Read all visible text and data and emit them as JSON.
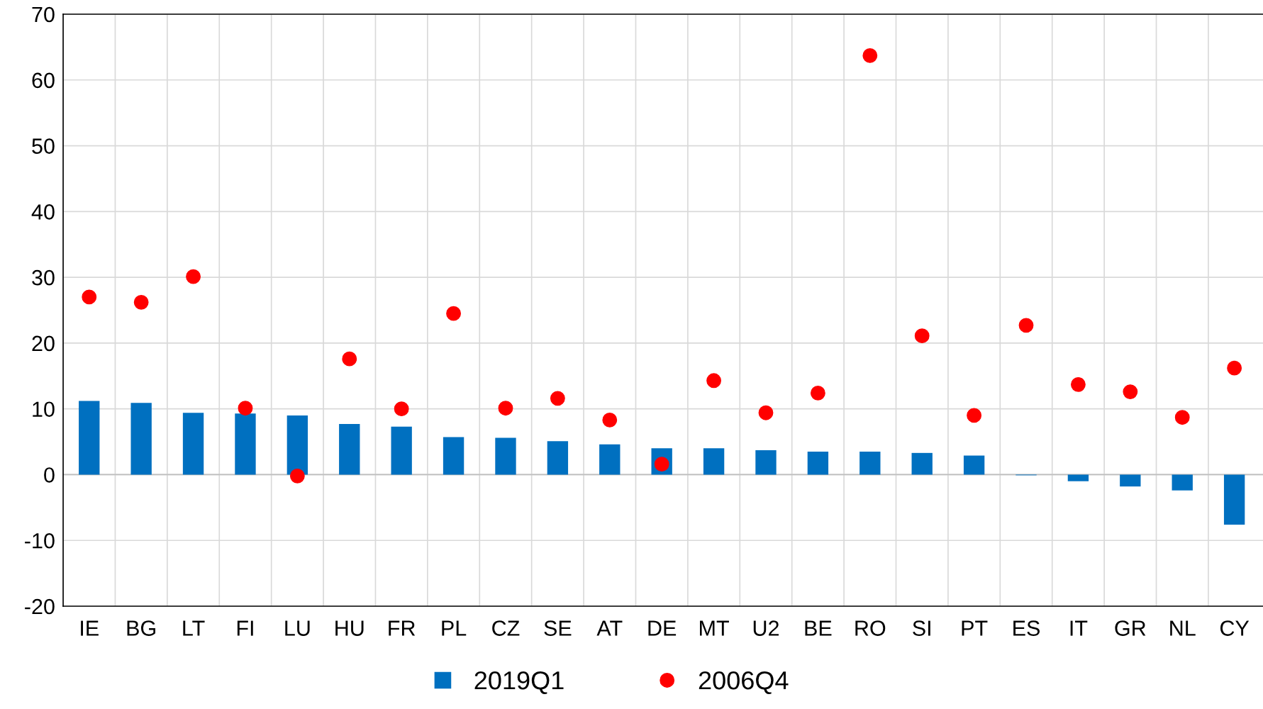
{
  "chart_data": {
    "type": "bar",
    "categories": [
      "IE",
      "BG",
      "LT",
      "FI",
      "LU",
      "HU",
      "FR",
      "PL",
      "CZ",
      "SE",
      "AT",
      "DE",
      "MT",
      "U2",
      "BE",
      "RO",
      "SI",
      "PT",
      "ES",
      "IT",
      "GR",
      "NL",
      "CY"
    ],
    "series": [
      {
        "name": "2019Q1",
        "color": "#0070c0",
        "values": [
          11.2,
          10.9,
          9.4,
          9.3,
          9.0,
          7.7,
          7.3,
          5.7,
          5.6,
          5.1,
          4.6,
          4.0,
          4.0,
          3.7,
          3.5,
          3.5,
          3.3,
          2.9,
          -0.1,
          -1.0,
          -1.8,
          -2.4,
          -7.6
        ]
      },
      {
        "name": "2006Q4",
        "type": "scatter",
        "color": "#ff0000",
        "marker": "circle",
        "values": [
          27.0,
          26.2,
          30.1,
          10.1,
          -0.2,
          17.6,
          10.0,
          24.5,
          10.1,
          11.6,
          8.3,
          1.6,
          14.3,
          9.4,
          12.4,
          63.7,
          21.1,
          9.0,
          22.7,
          13.7,
          12.6,
          8.7,
          16.2
        ]
      }
    ],
    "ylim": [
      -20,
      70
    ],
    "yticks": [
      -20,
      -10,
      0,
      10,
      20,
      30,
      40,
      50,
      60,
      70
    ],
    "grid": true,
    "legend": "bottom"
  }
}
